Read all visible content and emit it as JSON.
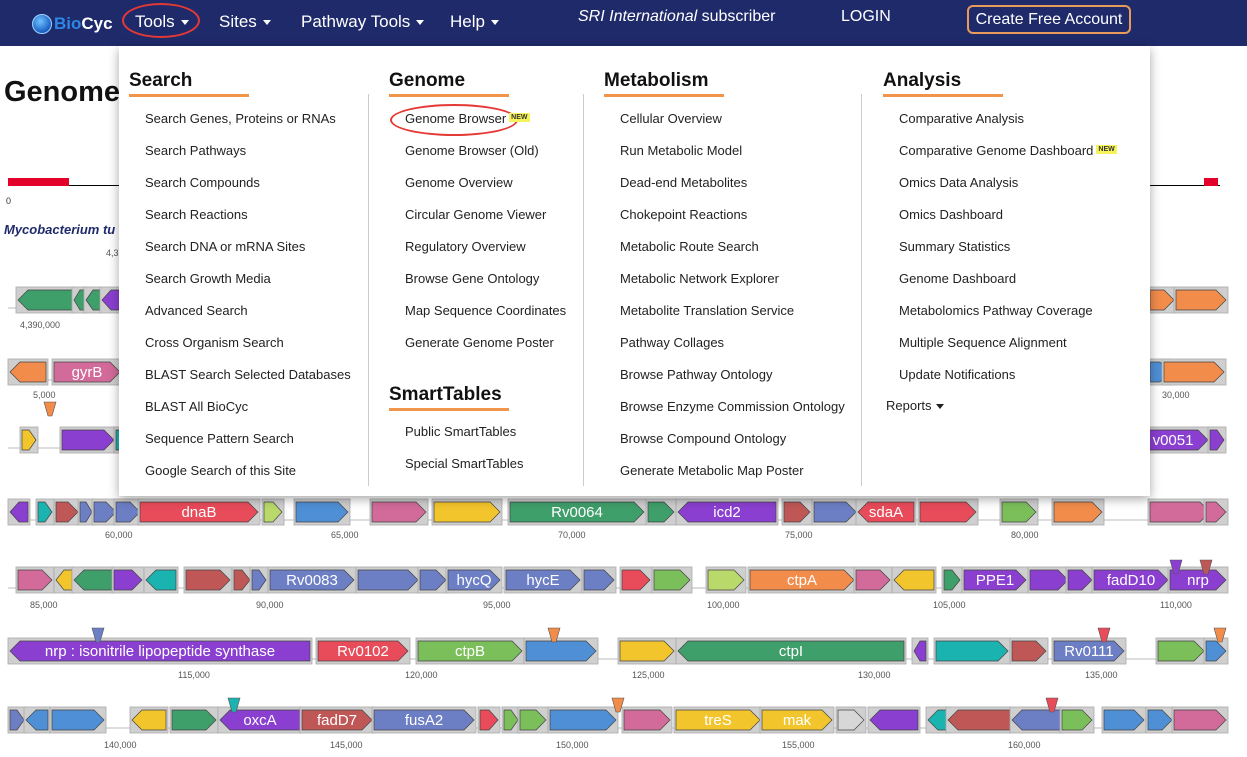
{
  "logo": {
    "bio": "Bio",
    "cyc": "Cyc"
  },
  "nav": {
    "tools": "Tools",
    "sites": "Sites",
    "pathway_tools": "Pathway Tools",
    "help": "Help",
    "subscriber_org": "SRI International",
    "subscriber_suffix": " subscriber",
    "login": "LOGIN",
    "create_account": "Create Free Account"
  },
  "page": {
    "title_visible": "Genome",
    "organism_visible": "Mycobacterium tu",
    "ruler_zero": "0"
  },
  "menu": {
    "new_badge": "NEW",
    "search": {
      "heading": "Search",
      "items": [
        "Search Genes, Proteins or RNAs",
        "Search Pathways",
        "Search Compounds",
        "Search Reactions",
        "Search DNA or mRNA Sites",
        "Search Growth Media",
        "Advanced Search",
        "Cross Organism Search",
        "BLAST Search Selected Databases",
        "BLAST All BioCyc",
        "Sequence Pattern Search",
        "Google Search of this Site"
      ]
    },
    "genome": {
      "heading": "Genome",
      "items": [
        "Genome Browser",
        "Genome Browser (Old)",
        "Genome Overview",
        "Circular Genome Viewer",
        "Regulatory Overview",
        "Browse Gene Ontology",
        "Map Sequence Coordinates",
        "Generate Genome Poster"
      ]
    },
    "smarttables": {
      "heading": "SmartTables",
      "items": [
        "Public SmartTables",
        "Special SmartTables"
      ]
    },
    "metabolism": {
      "heading": "Metabolism",
      "items": [
        "Cellular Overview",
        "Run Metabolic Model",
        "Dead-end Metabolites",
        "Chokepoint Reactions",
        "Metabolic Route Search",
        "Metabolic Network Explorer",
        "Metabolite Translation Service",
        "Pathway Collages",
        "Browse Pathway Ontology",
        "Browse Enzyme Commission Ontology",
        "Browse Compound Ontology",
        "Generate Metabolic Map Poster"
      ]
    },
    "analysis": {
      "heading": "Analysis",
      "items": [
        "Comparative Analysis",
        "Comparative Genome Dashboard",
        "Omics Data Analysis",
        "Omics Dashboard",
        "Summary Statistics",
        "Genome Dashboard",
        "Metabolomics Pathway Coverage",
        "Multiple Sequence Alignment",
        "Update Notifications"
      ],
      "reports": "Reports"
    }
  },
  "tracks": {
    "axis_labels": [
      "4,3",
      "4,390,000",
      "5,000",
      "30,000",
      "60,000",
      "65,000",
      "70,000",
      "75,000",
      "80,000",
      "85,000",
      "90,000",
      "95,000",
      "100,000",
      "105,000",
      "110,000",
      "115,000",
      "120,000",
      "125,000",
      "130,000",
      "135,000",
      "140,000",
      "145,000",
      "150,000",
      "155,000",
      "160,000"
    ],
    "gene_labels": [
      "gyrB",
      "v0051",
      "dnaB",
      "Rv0064",
      "icd2",
      "sdaA",
      "Rv0083",
      "hycQ",
      "hycE",
      "ctpA",
      "PPE1",
      "fadD10",
      "nrp",
      "nrp : isonitrile lipopeptide synthase",
      "Rv0102",
      "ctpB",
      "ctpI",
      "Rv0111",
      "oxcA",
      "fadD7",
      "fusA2",
      "treS",
      "mak"
    ]
  }
}
